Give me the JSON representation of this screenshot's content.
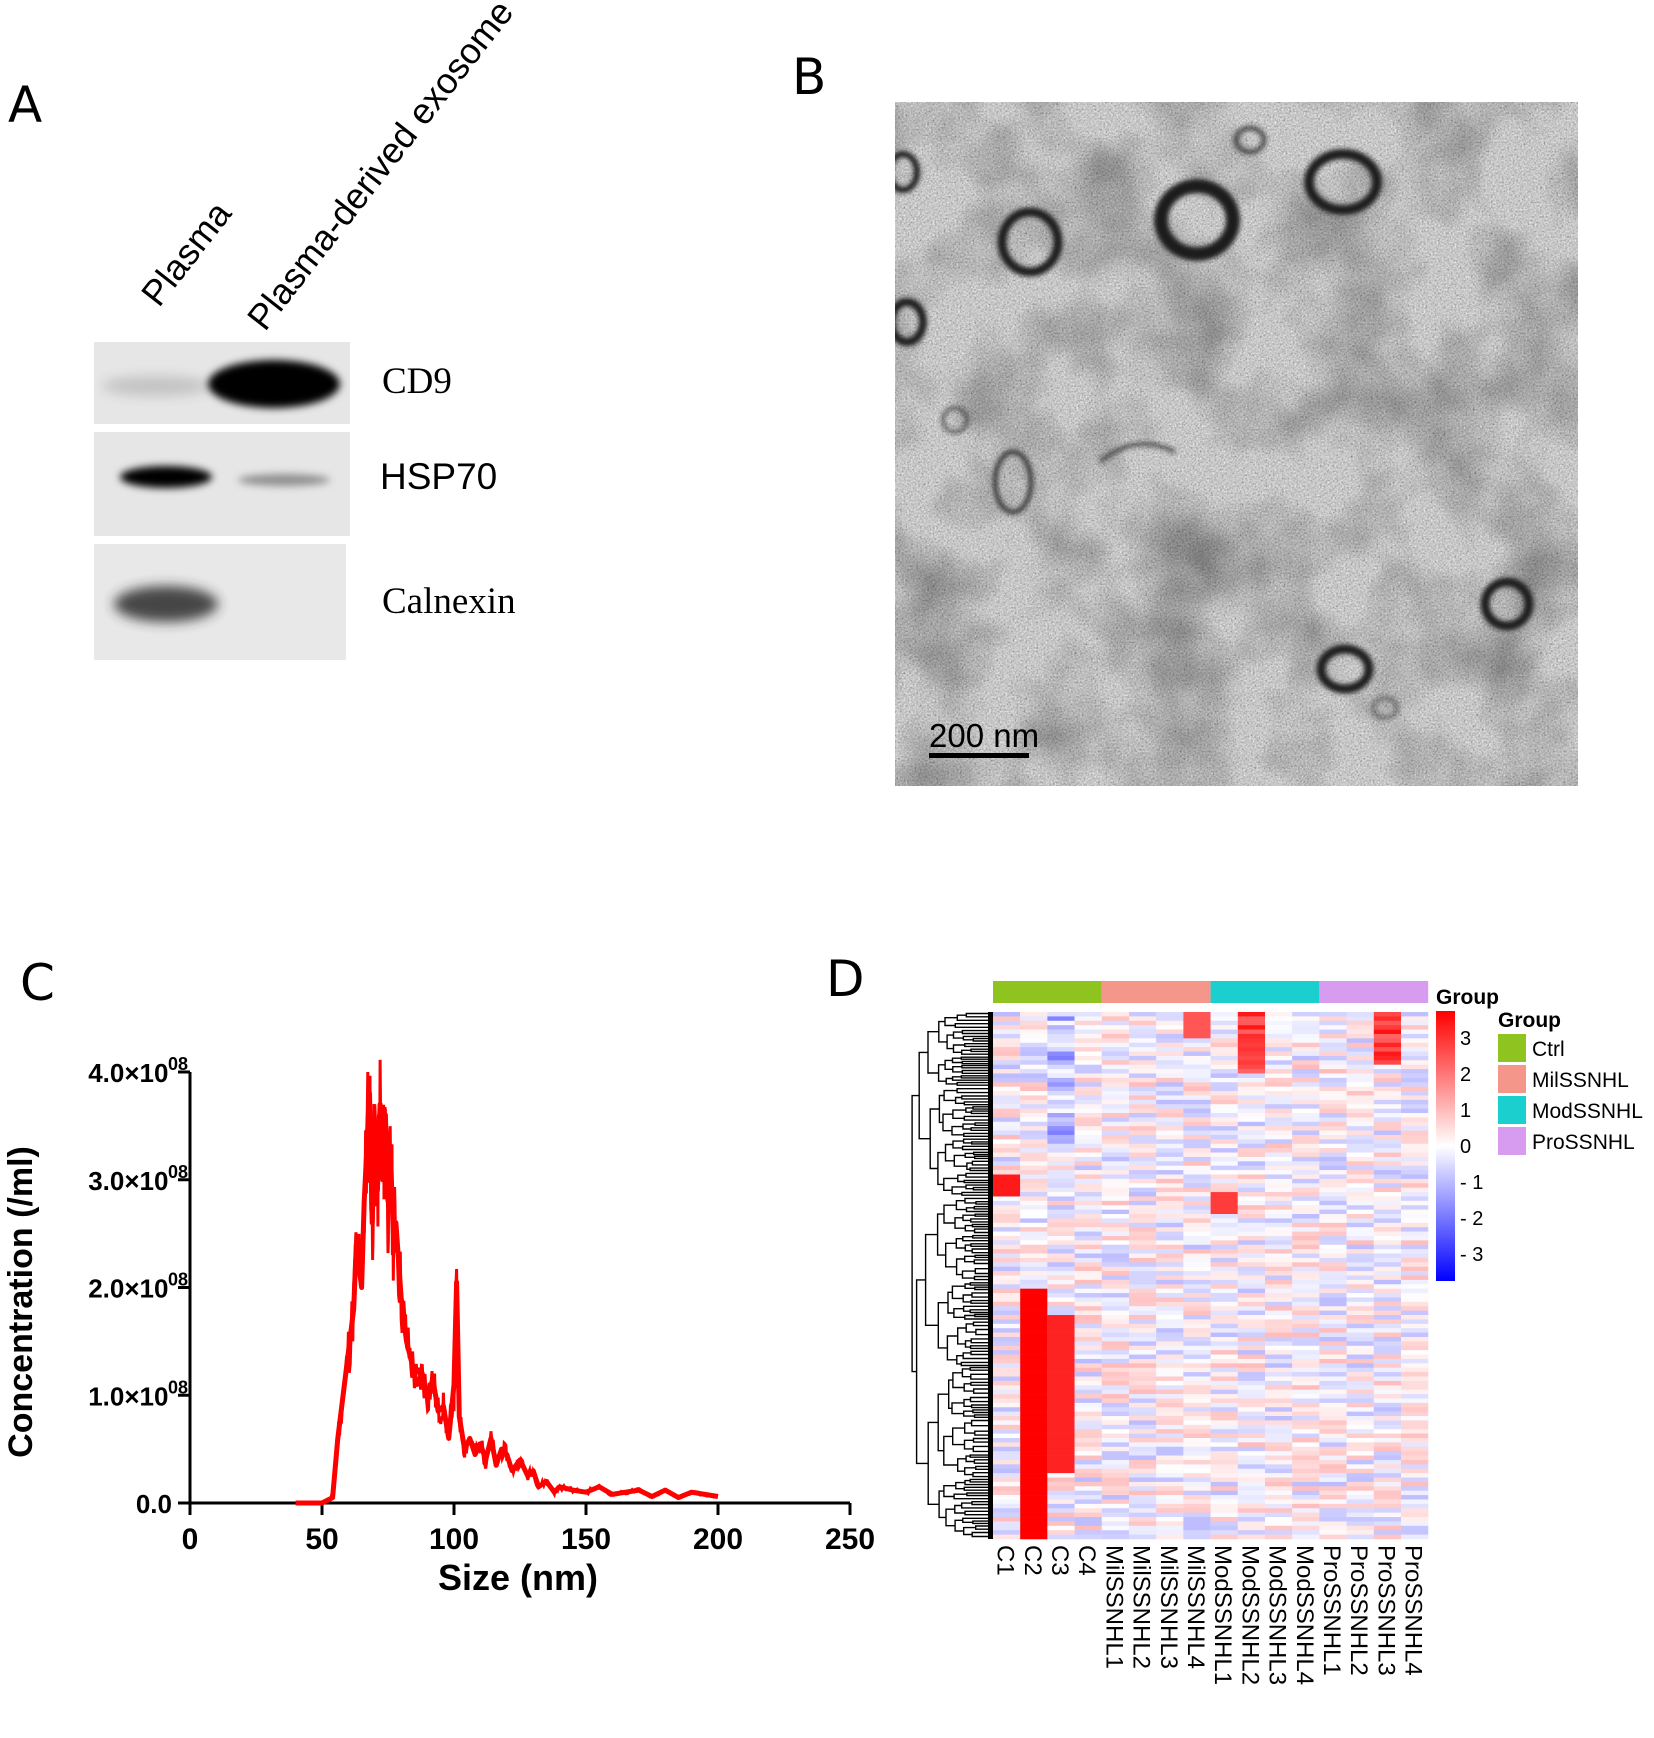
{
  "panels": {
    "A": {
      "letter": "A",
      "lanes": [
        "Plasma",
        "Plasma-derived exosome"
      ],
      "bands": [
        {
          "marker": "CD9",
          "intensity": [
            0.15,
            0.95
          ]
        },
        {
          "marker": "HSP70",
          "intensity": [
            0.95,
            0.3
          ]
        },
        {
          "marker": "Calnexin",
          "intensity": [
            0.75,
            0.0
          ]
        }
      ]
    },
    "B": {
      "letter": "B",
      "scale_bar": "200 nm"
    },
    "C": {
      "letter": "C",
      "xlabel": "Size (nm)",
      "ylabel": "Concentration (/ml)",
      "xticks": [
        "0",
        "50",
        "100",
        "150",
        "200",
        "250"
      ],
      "yticks": [
        "0.0",
        "1.0×10^08",
        "2.0×10^08",
        "3.0×10^08",
        "4.0×10^08"
      ],
      "ytick_prefix": [
        "0.0",
        "1.0×1",
        "2.0×1",
        "3.0×1",
        "4.0×1"
      ],
      "ytick_mark": "0",
      "ytick_sup": "08",
      "color": "#ff0000"
    },
    "D": {
      "letter": "D",
      "group_track_label": "Group",
      "legend_title": "Group",
      "groups": [
        {
          "name": "Ctrl",
          "color": "#8fc31f"
        },
        {
          "name": "MilSSNHL",
          "color": "#f4968a"
        },
        {
          "name": "ModSSNHL",
          "color": "#1ccfcf"
        },
        {
          "name": "ProSSNHL",
          "color": "#d79cf0"
        }
      ],
      "columns": [
        "C1",
        "C2",
        "C3",
        "C4",
        "MilSSNHL1",
        "MilSSNHL2",
        "MilSSNHL3",
        "MilSSNHL4",
        "ModSSNHL1",
        "ModSSNHL2",
        "ModSSNHL3",
        "ModSSNHL4",
        "ProSSNHL1",
        "ProSSNHL2",
        "ProSSNHL3",
        "ProSSNHL4"
      ],
      "colorbar_ticks": [
        "3",
        "2",
        "1",
        "0",
        "- 1",
        "- 2",
        "- 3"
      ]
    }
  },
  "chart_data": {
    "type": "line",
    "title": "",
    "xlabel": "Size (nm)",
    "ylabel": "Concentration (/ml)",
    "xlim": [
      0,
      250
    ],
    "ylim": [
      0,
      400000000
    ],
    "series": [
      {
        "x": [
          40,
          50,
          54,
          56,
          58,
          60,
          62,
          63,
          65,
          66,
          67,
          68,
          69,
          70,
          71,
          72,
          73,
          74,
          75,
          76,
          77,
          78,
          80,
          82,
          84,
          86,
          88,
          90,
          92,
          94,
          96,
          98,
          100,
          101,
          102,
          104,
          106,
          108,
          110,
          112,
          114,
          116,
          118,
          120,
          122,
          125,
          128,
          130,
          132,
          135,
          138,
          140,
          145,
          150,
          155,
          160,
          165,
          170,
          175,
          180,
          185,
          190,
          195,
          200
        ],
        "y": [
          0,
          0,
          5000000,
          60000000,
          100000000,
          140000000,
          180000000,
          240000000,
          200000000,
          280000000,
          330000000,
          380000000,
          260000000,
          350000000,
          290000000,
          370000000,
          300000000,
          360000000,
          280000000,
          320000000,
          250000000,
          260000000,
          190000000,
          150000000,
          130000000,
          110000000,
          120000000,
          100000000,
          115000000,
          85000000,
          90000000,
          60000000,
          110000000,
          205000000,
          80000000,
          50000000,
          60000000,
          45000000,
          55000000,
          40000000,
          60000000,
          35000000,
          50000000,
          45000000,
          30000000,
          40000000,
          25000000,
          30000000,
          15000000,
          20000000,
          10000000,
          15000000,
          12000000,
          10000000,
          15000000,
          8000000,
          10000000,
          12000000,
          6000000,
          12000000,
          5000000,
          10000000,
          8000000,
          6000000
        ]
      }
    ]
  }
}
